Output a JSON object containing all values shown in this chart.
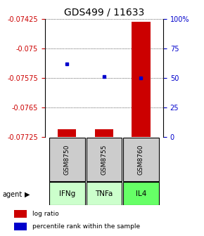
{
  "title": "GDS499 / 11633",
  "samples": [
    "GSM8750",
    "GSM8755",
    "GSM8760"
  ],
  "agents": [
    "IFNg",
    "TNFa",
    "IL4"
  ],
  "log_ratios": [
    -0.07706,
    -0.07706,
    -0.07432
  ],
  "percentile_ranks": [
    62,
    51,
    50
  ],
  "ymin": -0.07725,
  "ymax": -0.07425,
  "yticks_left": [
    -0.07425,
    -0.075,
    -0.07575,
    -0.0765,
    -0.07725
  ],
  "ytick_labels_left": [
    "-0.07425",
    "-0.075",
    "-0.07575",
    "-0.0765",
    "-0.07725"
  ],
  "yticks_right": [
    100,
    75,
    50,
    25,
    0
  ],
  "baseline": -0.07725,
  "bar_color": "#cc0000",
  "dot_color": "#0000cc",
  "agent_colors": [
    "#ccffcc",
    "#ccffcc",
    "#66ff66"
  ],
  "gsm_bg_color": "#cccccc",
  "left_axis_color": "#cc0000",
  "right_axis_color": "#0000cc",
  "title_fontsize": 10,
  "tick_fontsize": 7,
  "bar_width": 0.5
}
